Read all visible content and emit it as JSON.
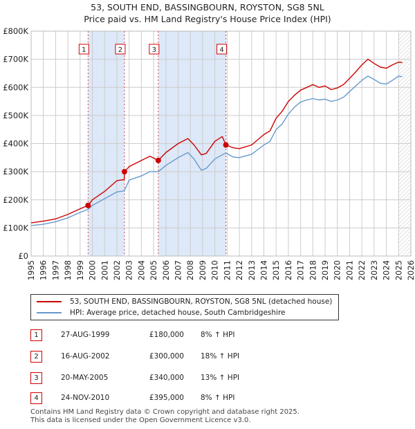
{
  "title_line1": "53, SOUTH END, BASSINGBOURN, ROYSTON, SG8 5NL",
  "title_line2": "Price paid vs. HM Land Registry's House Price Index (HPI)",
  "legend": {
    "property_label": "53, SOUTH END, BASSINGBOURN, ROYSTON, SG8 5NL (detached house)",
    "hpi_label": "HPI: Average price, detached house, South Cambridgeshire"
  },
  "transactions": [
    {
      "num": "1",
      "date": "27-AUG-1999",
      "price": "£180,000",
      "hpi": "8% ↑ HPI"
    },
    {
      "num": "2",
      "date": "16-AUG-2002",
      "price": "£300,000",
      "hpi": "18% ↑ HPI"
    },
    {
      "num": "3",
      "date": "20-MAY-2005",
      "price": "£340,000",
      "hpi": "13% ↑ HPI"
    },
    {
      "num": "4",
      "date": "24-NOV-2010",
      "price": "£395,000",
      "hpi": "8% ↑ HPI"
    }
  ],
  "footer_line1": "Contains HM Land Registry data © Crown copyright and database right 2025.",
  "footer_line2": "This data is licensed under the Open Government Licence v3.0.",
  "chart_data": {
    "type": "line",
    "title": "53, SOUTH END, BASSINGBOURN, ROYSTON, SG8 5NL",
    "xlabel": "",
    "ylabel": "",
    "xlim": [
      1995,
      2026
    ],
    "ylim": [
      0,
      800000
    ],
    "x_ticks": [
      1995,
      1996,
      1997,
      1998,
      1999,
      2000,
      2001,
      2002,
      2003,
      2004,
      2005,
      2006,
      2007,
      2008,
      2009,
      2010,
      2011,
      2012,
      2013,
      2014,
      2015,
      2016,
      2017,
      2018,
      2019,
      2020,
      2021,
      2022,
      2023,
      2024,
      2025,
      2026
    ],
    "y_ticks": [
      {
        "value": 0,
        "label": "£0"
      },
      {
        "value": 100000,
        "label": "£100K"
      },
      {
        "value": 200000,
        "label": "£200K"
      },
      {
        "value": 300000,
        "label": "£300K"
      },
      {
        "value": 400000,
        "label": "£400K"
      },
      {
        "value": 500000,
        "label": "£500K"
      },
      {
        "value": 600000,
        "label": "£600K"
      },
      {
        "value": 700000,
        "label": "£700K"
      },
      {
        "value": 800000,
        "label": "£800K"
      }
    ],
    "grid": true,
    "shaded_ranges": [
      [
        1999.65,
        2002.62
      ],
      [
        2005.38,
        2010.9
      ]
    ],
    "forecast_from": 2025.0,
    "colors": {
      "property": "#cc0000",
      "hpi": "#6699cc",
      "shade": "#dde8f8",
      "grid": "#cccccc"
    },
    "series": [
      {
        "name": "53, SOUTH END, BASSINGBOURN, ROYSTON, SG8 5NL (detached house)",
        "color": "#cc0000",
        "x": [
          1995.0,
          1996.0,
          1997.0,
          1998.0,
          1999.0,
          1999.65,
          2000.0,
          2001.0,
          2002.0,
          2002.6,
          2002.63,
          2003.0,
          2004.0,
          2004.7,
          2005.38,
          2006.0,
          2007.0,
          2007.8,
          2008.3,
          2008.9,
          2009.3,
          2010.0,
          2010.6,
          2010.9,
          2011.5,
          2012.0,
          2013.0,
          2014.0,
          2014.5,
          2015.0,
          2015.5,
          2016.0,
          2016.5,
          2017.0,
          2017.5,
          2018.0,
          2018.5,
          2019.0,
          2019.5,
          2020.0,
          2020.5,
          2021.0,
          2021.5,
          2022.0,
          2022.5,
          2023.0,
          2023.5,
          2024.0,
          2024.5,
          2025.0,
          2025.3
        ],
        "y": [
          118000,
          124000,
          132000,
          148000,
          168000,
          180000,
          200000,
          230000,
          268000,
          272000,
          300000,
          318000,
          340000,
          355000,
          340000,
          368000,
          400000,
          418000,
          395000,
          360000,
          365000,
          408000,
          425000,
          395000,
          385000,
          382000,
          395000,
          432000,
          445000,
          490000,
          515000,
          550000,
          572000,
          590000,
          600000,
          610000,
          600000,
          605000,
          592000,
          598000,
          610000,
          632000,
          655000,
          680000,
          700000,
          685000,
          672000,
          668000,
          680000,
          690000,
          688000
        ]
      },
      {
        "name": "HPI: Average price, detached house, South Cambridgeshire",
        "color": "#6699cc",
        "x": [
          1995.0,
          1996.0,
          1997.0,
          1998.0,
          1999.0,
          1999.65,
          2000.0,
          2001.0,
          2002.0,
          2002.6,
          2003.0,
          2004.0,
          2004.7,
          2005.38,
          2006.0,
          2007.0,
          2007.8,
          2008.3,
          2008.9,
          2009.3,
          2010.0,
          2010.6,
          2010.9,
          2011.5,
          2012.0,
          2013.0,
          2014.0,
          2014.5,
          2015.0,
          2015.5,
          2016.0,
          2016.5,
          2017.0,
          2017.5,
          2018.0,
          2018.5,
          2019.0,
          2019.5,
          2020.0,
          2020.5,
          2021.0,
          2021.5,
          2022.0,
          2022.5,
          2023.0,
          2023.5,
          2024.0,
          2024.5,
          2025.0,
          2025.3
        ],
        "y": [
          108000,
          113000,
          122000,
          136000,
          155000,
          166000,
          180000,
          204000,
          228000,
          232000,
          270000,
          285000,
          300000,
          300000,
          322000,
          350000,
          368000,
          345000,
          305000,
          312000,
          345000,
          360000,
          366000,
          352000,
          350000,
          362000,
          395000,
          408000,
          450000,
          470000,
          505000,
          530000,
          548000,
          555000,
          560000,
          555000,
          558000,
          550000,
          555000,
          565000,
          585000,
          605000,
          625000,
          640000,
          628000,
          615000,
          612000,
          625000,
          640000,
          638000
        ]
      }
    ],
    "sales": [
      {
        "label": "1",
        "x": 1999.65,
        "y": 180000
      },
      {
        "label": "2",
        "x": 2002.62,
        "y": 300000
      },
      {
        "label": "3",
        "x": 2005.38,
        "y": 340000
      },
      {
        "label": "4",
        "x": 2010.9,
        "y": 395000
      }
    ]
  }
}
